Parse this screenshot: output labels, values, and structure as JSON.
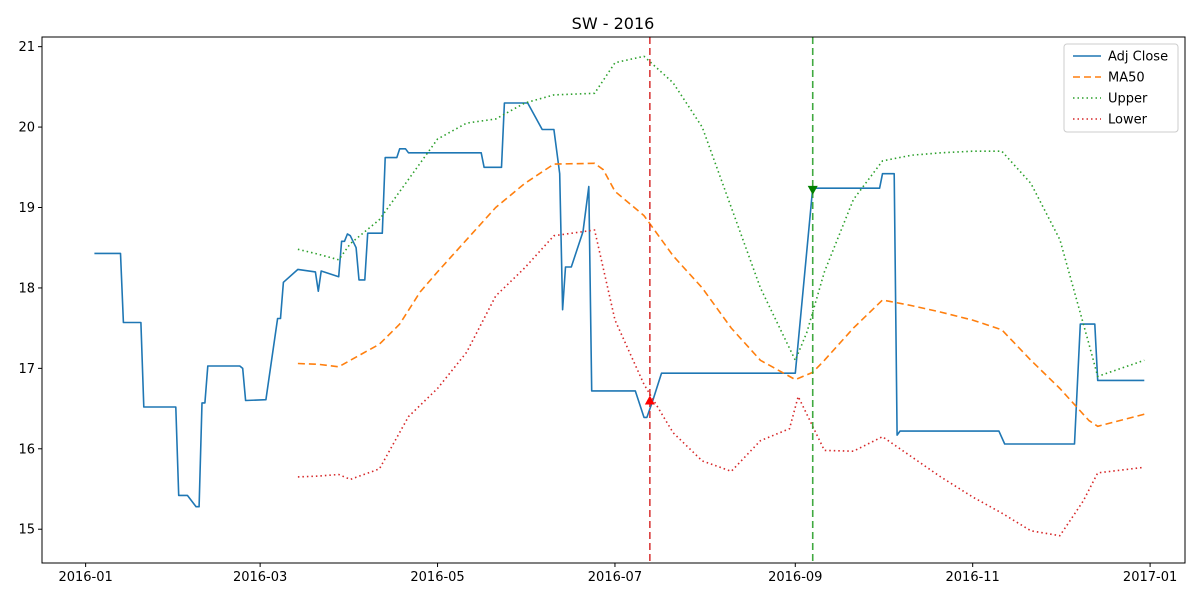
{
  "chart_data": {
    "type": "line",
    "title": "SW - 2016",
    "xlabel": "",
    "ylabel": "",
    "xlim": [
      "2015-12-17",
      "2017-01-13"
    ],
    "ylim": [
      14.58,
      21.12
    ],
    "x_ticks": [
      "2016-01",
      "2016-03",
      "2016-05",
      "2016-07",
      "2016-09",
      "2016-11",
      "2017-01"
    ],
    "y_ticks": [
      15,
      16,
      17,
      18,
      19,
      20,
      21
    ],
    "grid": false,
    "legend_position": "top-right",
    "series": [
      {
        "name": "Adj Close",
        "style": "solid",
        "color": "#1f77b4",
        "x": [
          "2016-01-04",
          "2016-01-13",
          "2016-01-14",
          "2016-01-20",
          "2016-01-21",
          "2016-02-01",
          "2016-02-02",
          "2016-02-05",
          "2016-02-08",
          "2016-02-09",
          "2016-02-10",
          "2016-02-11",
          "2016-02-12",
          "2016-02-23",
          "2016-02-24",
          "2016-02-25",
          "2016-03-03",
          "2016-03-07",
          "2016-03-08",
          "2016-03-09",
          "2016-03-14",
          "2016-03-20",
          "2016-03-21",
          "2016-03-22",
          "2016-03-28",
          "2016-03-29",
          "2016-03-30",
          "2016-03-31",
          "2016-04-01",
          "2016-04-03",
          "2016-04-04",
          "2016-04-06",
          "2016-04-07",
          "2016-04-12",
          "2016-04-13",
          "2016-04-17",
          "2016-04-18",
          "2016-04-20",
          "2016-04-21",
          "2016-05-16",
          "2016-05-17",
          "2016-05-23",
          "2016-05-24",
          "2016-06-01",
          "2016-06-06",
          "2016-06-10",
          "2016-06-12",
          "2016-06-13",
          "2016-06-14",
          "2016-06-16",
          "2016-06-20",
          "2016-06-22",
          "2016-06-23",
          "2016-06-24",
          "2016-07-08",
          "2016-07-11",
          "2016-07-12",
          "2016-07-14",
          "2016-07-17",
          "2016-09-01",
          "2016-09-07",
          "2016-09-30",
          "2016-10-01",
          "2016-10-05",
          "2016-10-06",
          "2016-10-07",
          "2016-11-10",
          "2016-11-12",
          "2016-12-06",
          "2016-12-08",
          "2016-12-13",
          "2016-12-14",
          "2016-12-30"
        ],
        "values": [
          18.43,
          18.43,
          17.57,
          17.57,
          16.52,
          16.52,
          15.42,
          15.42,
          15.28,
          15.28,
          16.57,
          16.57,
          17.03,
          17.03,
          17.0,
          16.6,
          16.61,
          17.62,
          17.62,
          18.07,
          18.23,
          18.2,
          17.96,
          18.21,
          18.14,
          18.58,
          18.58,
          18.67,
          18.65,
          18.5,
          18.1,
          18.1,
          18.68,
          18.68,
          19.62,
          19.62,
          19.73,
          19.73,
          19.68,
          19.68,
          19.5,
          19.5,
          20.3,
          20.3,
          19.97,
          19.97,
          19.42,
          17.73,
          18.26,
          18.26,
          18.7,
          19.26,
          16.72,
          16.72,
          16.72,
          16.39,
          16.39,
          16.6,
          16.94,
          16.94,
          19.24,
          19.24,
          19.42,
          19.42,
          16.17,
          16.22,
          16.22,
          16.06,
          16.06,
          17.55,
          17.55,
          16.85,
          16.85
        ]
      },
      {
        "name": "MA50",
        "style": "dashed",
        "color": "#ff7f0e",
        "x": [
          "2016-03-14",
          "2016-03-21",
          "2016-03-28",
          "2016-04-01",
          "2016-04-11",
          "2016-04-18",
          "2016-04-25",
          "2016-05-01",
          "2016-05-11",
          "2016-05-21",
          "2016-05-31",
          "2016-06-10",
          "2016-06-24",
          "2016-06-27",
          "2016-07-01",
          "2016-07-11",
          "2016-07-21",
          "2016-07-31",
          "2016-08-10",
          "2016-08-20",
          "2016-09-01",
          "2016-09-07",
          "2016-09-11",
          "2016-09-21",
          "2016-10-01",
          "2016-10-11",
          "2016-10-21",
          "2016-11-01",
          "2016-11-11",
          "2016-11-21",
          "2016-12-01",
          "2016-12-11",
          "2016-12-14",
          "2016-12-30"
        ],
        "values": [
          17.06,
          17.05,
          17.02,
          17.1,
          17.3,
          17.55,
          17.95,
          18.2,
          18.6,
          19.0,
          19.3,
          19.54,
          19.55,
          19.47,
          19.2,
          18.9,
          18.4,
          18.0,
          17.5,
          17.1,
          16.86,
          16.95,
          17.1,
          17.5,
          17.85,
          17.78,
          17.7,
          17.6,
          17.48,
          17.1,
          16.75,
          16.35,
          16.28,
          16.43
        ]
      },
      {
        "name": "Upper",
        "style": "dotted",
        "color": "#2ca02c",
        "x": [
          "2016-03-14",
          "2016-03-21",
          "2016-03-28",
          "2016-04-01",
          "2016-04-11",
          "2016-04-21",
          "2016-05-01",
          "2016-05-11",
          "2016-05-21",
          "2016-05-31",
          "2016-06-10",
          "2016-06-24",
          "2016-07-01",
          "2016-07-11",
          "2016-07-21",
          "2016-07-31",
          "2016-08-10",
          "2016-08-20",
          "2016-09-01",
          "2016-09-05",
          "2016-09-11",
          "2016-09-21",
          "2016-10-01",
          "2016-10-11",
          "2016-10-21",
          "2016-11-01",
          "2016-11-11",
          "2016-11-21",
          "2016-12-01",
          "2016-12-11",
          "2016-12-14",
          "2016-12-30"
        ],
        "values": [
          18.48,
          18.42,
          18.35,
          18.55,
          18.85,
          19.35,
          19.85,
          20.05,
          20.1,
          20.3,
          20.4,
          20.42,
          20.8,
          20.88,
          20.55,
          20.0,
          19.0,
          18.0,
          17.1,
          17.45,
          18.2,
          19.1,
          19.58,
          19.65,
          19.68,
          19.7,
          19.7,
          19.3,
          18.6,
          17.3,
          16.9,
          17.1
        ]
      },
      {
        "name": "Lower",
        "style": "dotted",
        "color": "#d62728",
        "x": [
          "2016-03-14",
          "2016-03-21",
          "2016-03-28",
          "2016-04-01",
          "2016-04-11",
          "2016-04-21",
          "2016-05-01",
          "2016-05-11",
          "2016-05-21",
          "2016-05-31",
          "2016-06-10",
          "2016-06-24",
          "2016-07-01",
          "2016-07-11",
          "2016-07-21",
          "2016-07-31",
          "2016-08-10",
          "2016-08-20",
          "2016-08-30",
          "2016-09-02",
          "2016-09-11",
          "2016-09-21",
          "2016-10-01",
          "2016-10-11",
          "2016-10-21",
          "2016-11-01",
          "2016-11-11",
          "2016-11-21",
          "2016-12-01",
          "2016-12-09",
          "2016-12-14",
          "2016-12-30"
        ],
        "values": [
          15.65,
          15.66,
          15.68,
          15.62,
          15.75,
          16.4,
          16.75,
          17.2,
          17.9,
          18.25,
          18.65,
          18.72,
          17.6,
          16.8,
          16.2,
          15.85,
          15.72,
          16.1,
          16.25,
          16.65,
          15.98,
          15.97,
          16.15,
          15.9,
          15.65,
          15.4,
          15.2,
          14.98,
          14.92,
          15.35,
          15.7,
          15.77
        ]
      }
    ],
    "vlines": [
      {
        "x": "2016-07-13",
        "color": "#d62728",
        "style": "dashed"
      },
      {
        "x": "2016-09-07",
        "color": "#2ca02c",
        "style": "dashed"
      }
    ],
    "markers": [
      {
        "x": "2016-07-13",
        "y": 16.6,
        "shape": "triangle-up",
        "color": "#ff0000"
      },
      {
        "x": "2016-09-07",
        "y": 19.22,
        "shape": "triangle-down",
        "color": "#008000"
      }
    ]
  }
}
